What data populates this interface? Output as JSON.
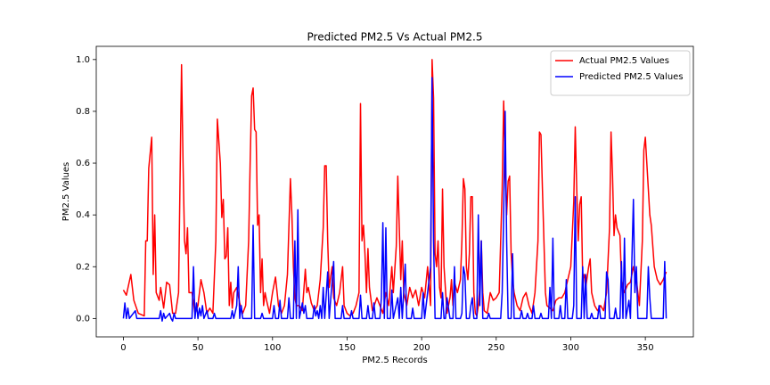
{
  "chart_data": {
    "type": "line",
    "title": "Predicted PM2.5  Vs Actual PM2.5",
    "x_label": "PM2.5 Records",
    "y_label": "PM2.5 Values",
    "xlim": [
      -18.2,
      382.2
    ],
    "ylim": [
      -0.071,
      1.051
    ],
    "xticks": [
      0,
      50,
      100,
      150,
      200,
      250,
      300,
      350
    ],
    "yticks": [
      {
        "value": 0.0,
        "label": "0.0"
      },
      0.2,
      0.4,
      0.6,
      0.8,
      {
        "value": 1.0,
        "label": "1.0"
      }
    ],
    "grid": false,
    "legend": "upper right",
    "series": [
      {
        "name": "Actual PM2.5 Values",
        "color": "#ff0000",
        "x": [
          0,
          2,
          5,
          7,
          10,
          14,
          15,
          16,
          17,
          19,
          20,
          21,
          22,
          24,
          25,
          27,
          29,
          31,
          33,
          35,
          37,
          39,
          40,
          41,
          42,
          43,
          44,
          46,
          48,
          50,
          52,
          54,
          56,
          58,
          60,
          62,
          63,
          65,
          66,
          67,
          68,
          69,
          70,
          71,
          72,
          73,
          74,
          76,
          78,
          80,
          82,
          84,
          85,
          86,
          87,
          88,
          89,
          90,
          91,
          92,
          93,
          94,
          95,
          96,
          98,
          100,
          102,
          104,
          106,
          108,
          110,
          112,
          113,
          114,
          115,
          116,
          118,
          120,
          122,
          123,
          124,
          126,
          128,
          130,
          132,
          134,
          135,
          136,
          137,
          138,
          140,
          141,
          143,
          145,
          147,
          148,
          150,
          152,
          154,
          156,
          158,
          159,
          160,
          161,
          162,
          163,
          164,
          165,
          167,
          170,
          172,
          174,
          176,
          178,
          180,
          181,
          183,
          184,
          185,
          186,
          187,
          188,
          190,
          192,
          194,
          196,
          198,
          200,
          202,
          204,
          206,
          207,
          208,
          209,
          210,
          211,
          212,
          213,
          214,
          215,
          217,
          219,
          220,
          221,
          222,
          224,
          226,
          227,
          228,
          229,
          230,
          231,
          232,
          233,
          234,
          235,
          236,
          237,
          238,
          239,
          240,
          241,
          242,
          244,
          246,
          248,
          250,
          252,
          254,
          255,
          256,
          257,
          258,
          259,
          260,
          261,
          262,
          264,
          266,
          268,
          270,
          272,
          274,
          276,
          278,
          279,
          280,
          281,
          282,
          283,
          284,
          286,
          288,
          290,
          292,
          294,
          296,
          298,
          300,
          302,
          303,
          304,
          305,
          306,
          307,
          308,
          309,
          310,
          312,
          313,
          314,
          316,
          318,
          320,
          322,
          324,
          326,
          327,
          328,
          329,
          330,
          331,
          333,
          334,
          336,
          338,
          340,
          342,
          344,
          346,
          348,
          349,
          350,
          351,
          352,
          353,
          354,
          356,
          358,
          360,
          362,
          364
        ],
        "values": [
          0.11,
          0.09,
          0.17,
          0.07,
          0.02,
          0.01,
          0.3,
          0.3,
          0.58,
          0.7,
          0.17,
          0.4,
          0.1,
          0.07,
          0.12,
          0.04,
          0.14,
          0.13,
          0.02,
          0.02,
          0.1,
          0.98,
          0.6,
          0.3,
          0.25,
          0.35,
          0.1,
          0.1,
          0.02,
          0.05,
          0.15,
          0.1,
          0.02,
          0.04,
          0.02,
          0.3,
          0.77,
          0.6,
          0.39,
          0.46,
          0.23,
          0.24,
          0.35,
          0.05,
          0.14,
          0.04,
          0.1,
          0.12,
          0.06,
          0.02,
          0.05,
          0.3,
          0.6,
          0.86,
          0.89,
          0.73,
          0.72,
          0.36,
          0.4,
          0.1,
          0.23,
          0.05,
          0.1,
          0.07,
          0.02,
          0.1,
          0.16,
          0.05,
          0.02,
          0.05,
          0.17,
          0.54,
          0.4,
          0.2,
          0.08,
          0.05,
          0.05,
          0.03,
          0.19,
          0.1,
          0.12,
          0.06,
          0.03,
          0.05,
          0.15,
          0.35,
          0.59,
          0.59,
          0.3,
          0.12,
          0.2,
          0.08,
          0.05,
          0.1,
          0.2,
          0.05,
          0.02,
          0.01,
          0.02,
          0.05,
          0.1,
          0.83,
          0.3,
          0.36,
          0.25,
          0.1,
          0.27,
          0.12,
          0.03,
          0.08,
          0.05,
          0.02,
          0.1,
          0.05,
          0.2,
          0.1,
          0.28,
          0.55,
          0.35,
          0.15,
          0.3,
          0.1,
          0.05,
          0.12,
          0.08,
          0.11,
          0.05,
          0.12,
          0.08,
          0.2,
          0.05,
          1.0,
          0.85,
          0.25,
          0.2,
          0.3,
          0.12,
          0.08,
          0.5,
          0.2,
          0.02,
          0.08,
          0.15,
          0.05,
          0.14,
          0.1,
          0.15,
          0.3,
          0.54,
          0.5,
          0.2,
          0.15,
          0.25,
          0.47,
          0.47,
          0.1,
          0.02,
          0.01,
          0.05,
          0.12,
          0.3,
          0.1,
          0.03,
          0.02,
          0.1,
          0.07,
          0.08,
          0.1,
          0.5,
          0.84,
          0.6,
          0.4,
          0.53,
          0.55,
          0.25,
          0.15,
          0.1,
          0.05,
          0.03,
          0.08,
          0.1,
          0.05,
          0.02,
          0.1,
          0.3,
          0.72,
          0.71,
          0.5,
          0.3,
          0.1,
          0.05,
          0.04,
          0.03,
          0.07,
          0.08,
          0.08,
          0.1,
          0.15,
          0.2,
          0.45,
          0.74,
          0.5,
          0.3,
          0.44,
          0.47,
          0.15,
          0.17,
          0.12,
          0.2,
          0.23,
          0.1,
          0.05,
          0.03,
          0.05,
          0.03,
          0.1,
          0.35,
          0.72,
          0.55,
          0.32,
          0.4,
          0.35,
          0.32,
          0.15,
          0.1,
          0.13,
          0.14,
          0.2,
          0.15,
          0.05,
          0.3,
          0.65,
          0.7,
          0.6,
          0.5,
          0.4,
          0.36,
          0.2,
          0.15,
          0.13,
          0.15,
          0.18
        ]
      },
      {
        "name": "Predicted PM2.5 Values",
        "color": "#0000ff",
        "x": [
          0,
          1,
          2,
          3,
          4,
          8,
          9,
          24,
          25,
          26,
          27,
          28,
          31,
          32,
          33,
          34,
          35,
          46,
          47,
          48,
          49,
          50,
          51,
          52,
          53,
          54,
          56,
          57,
          60,
          61,
          62,
          72,
          73,
          74,
          76,
          77,
          78,
          79,
          80,
          86,
          87,
          88,
          92,
          93,
          94,
          100,
          101,
          102,
          104,
          105,
          106,
          110,
          111,
          112,
          114,
          115,
          116,
          117,
          118,
          120,
          121,
          122,
          123,
          127,
          128,
          129,
          130,
          131,
          132,
          133,
          134,
          135,
          137,
          138,
          141,
          142,
          146,
          147,
          148,
          152,
          153,
          154,
          158,
          159,
          160,
          163,
          164,
          165,
          167,
          168,
          169,
          172,
          173,
          174,
          175,
          176,
          177,
          179,
          180,
          181,
          184,
          185,
          186,
          187,
          189,
          190,
          193,
          194,
          195,
          200,
          201,
          202,
          206,
          207,
          208,
          209,
          213,
          214,
          215,
          216,
          217,
          218,
          219,
          221,
          222,
          223,
          226,
          227,
          228,
          229,
          230,
          232,
          233,
          234,
          235,
          237,
          238,
          239,
          240,
          241,
          244,
          245,
          246,
          253,
          254,
          255,
          256,
          257,
          258,
          260,
          261,
          262,
          266,
          267,
          268,
          270,
          271,
          272,
          274,
          275,
          276,
          279,
          280,
          281,
          285,
          286,
          287,
          288,
          289,
          292,
          293,
          294,
          296,
          297,
          298,
          301,
          302,
          303,
          304,
          307,
          308,
          309,
          310,
          311,
          313,
          314,
          315,
          318,
          319,
          320,
          323,
          324,
          325,
          326,
          329,
          330,
          331,
          333,
          334,
          335,
          336,
          337,
          339,
          340,
          342,
          343,
          344,
          345,
          351,
          352,
          353,
          354,
          362,
          363,
          364
        ],
        "values": [
          0,
          0.06,
          0,
          0.04,
          0,
          0.03,
          0,
          0,
          0.03,
          -0.01,
          0.02,
          0,
          0.02,
          0,
          -0.01,
          0.02,
          0,
          0,
          0.2,
          0,
          0.06,
          0,
          0.04,
          0.01,
          0.05,
          0,
          0.03,
          0,
          0,
          0.02,
          0,
          0,
          0.03,
          0,
          0.05,
          0.2,
          0,
          0.05,
          0,
          0,
          0.36,
          0,
          0,
          0.02,
          0,
          0,
          0.05,
          0,
          0,
          0.07,
          0,
          0,
          0.08,
          0,
          0,
          0.3,
          0,
          0.42,
          0,
          0.06,
          0.02,
          0.05,
          0,
          0,
          0.05,
          0.01,
          0.03,
          0,
          0.05,
          0,
          0.12,
          0,
          0.18,
          0,
          0.22,
          0,
          0,
          0.05,
          0,
          0,
          0.03,
          0,
          0,
          0.09,
          0,
          0,
          0.05,
          0,
          0,
          0.06,
          0,
          0,
          0.08,
          0.37,
          0,
          0.35,
          0,
          0,
          0.11,
          0,
          0.08,
          0,
          0.12,
          0,
          0.21,
          0,
          0,
          0.04,
          0,
          0,
          0.1,
          0,
          0.2,
          0.93,
          0.3,
          0,
          0,
          0.1,
          0,
          0,
          0.08,
          0.04,
          0,
          0,
          0.2,
          0,
          0,
          0.02,
          0.2,
          0.17,
          0,
          0,
          0.05,
          0.08,
          0,
          0,
          0.4,
          0.05,
          0.3,
          0,
          0,
          0.02,
          0,
          0,
          0.1,
          0.4,
          0.8,
          0.3,
          0,
          0,
          0.25,
          0,
          0,
          0.03,
          0,
          0,
          0.02,
          0,
          0,
          0.05,
          0,
          0,
          0.02,
          0,
          0,
          0.12,
          0,
          0.31,
          0,
          0,
          0.05,
          0,
          0,
          0.15,
          0,
          0,
          0.05,
          0.47,
          0,
          0,
          0.2,
          0,
          0.17,
          0,
          0,
          0.02,
          0,
          0,
          0.05,
          0,
          0,
          0.18,
          0.15,
          0,
          0,
          0.04,
          0,
          0,
          0.22,
          0,
          0.31,
          0,
          0.07,
          0,
          0.46,
          0.1,
          0.2,
          0,
          0,
          0.2,
          0.08,
          0,
          0,
          0.22,
          0
        ]
      }
    ]
  }
}
